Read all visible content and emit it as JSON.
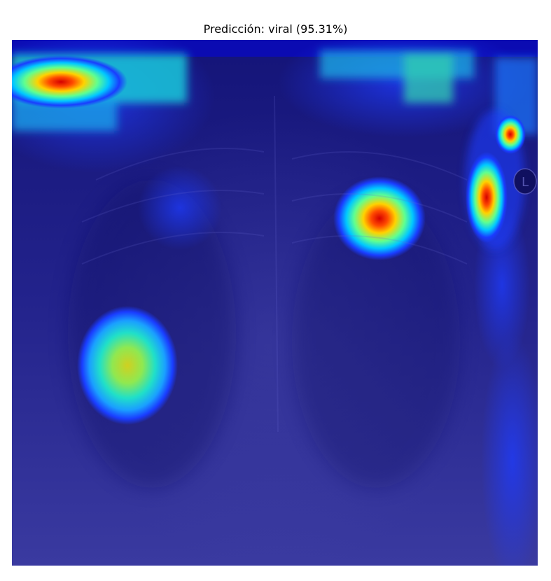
{
  "figure": {
    "title": "Predicción: viral (95.31%)",
    "image_description_icon": "gradcam-heatmap-image",
    "colormap": "jet",
    "colors": {
      "background": "#ffffff",
      "heat_low": "#1a1a8c",
      "heat_mid": "#00d8c0",
      "heat_high": "#ff0000"
    },
    "marker_letter": "L"
  }
}
